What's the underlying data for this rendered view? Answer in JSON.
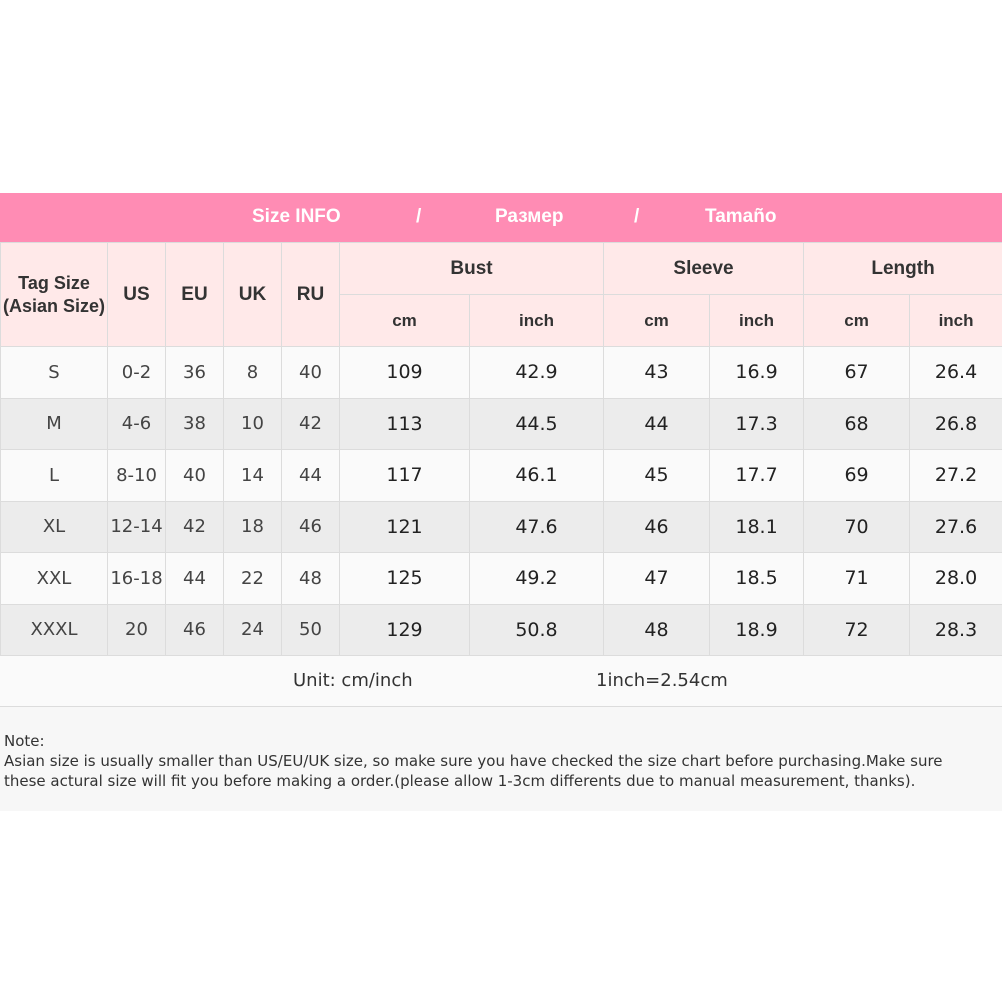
{
  "banner": {
    "title_en": "Size INFO",
    "sep": "/",
    "title_ru": "Размер",
    "title_es": "Tamaño",
    "color": "#ff8cb4"
  },
  "headers": {
    "tag_line1": "Tag Size",
    "tag_line2": "(Asian Size)",
    "us": "US",
    "eu": "EU",
    "uk": "UK",
    "ru": "RU",
    "bust": "Bust",
    "sleeve": "Sleeve",
    "length": "Length",
    "cm": "cm",
    "inch": "inch"
  },
  "rows": [
    [
      "S",
      "0-2",
      "36",
      "8",
      "40",
      "109",
      "42.9",
      "43",
      "16.9",
      "67",
      "26.4"
    ],
    [
      "M",
      "4-6",
      "38",
      "10",
      "42",
      "113",
      "44.5",
      "44",
      "17.3",
      "68",
      "26.8"
    ],
    [
      "L",
      "8-10",
      "40",
      "14",
      "44",
      "117",
      "46.1",
      "45",
      "17.7",
      "69",
      "27.2"
    ],
    [
      "XL",
      "12-14",
      "42",
      "18",
      "46",
      "121",
      "47.6",
      "46",
      "18.1",
      "70",
      "27.6"
    ],
    [
      "XXL",
      "16-18",
      "44",
      "22",
      "48",
      "125",
      "49.2",
      "47",
      "18.5",
      "71",
      "28.0"
    ],
    [
      "XXXL",
      "20",
      "46",
      "24",
      "50",
      "129",
      "50.8",
      "48",
      "18.9",
      "72",
      "28.3"
    ]
  ],
  "unit": {
    "label": "Unit: cm/inch",
    "conversion": "1inch=2.54cm"
  },
  "note": {
    "title": "Note:",
    "line1": "Asian size is usually smaller than US/EU/UK size, so make sure you have checked the size chart before purchasing.Make sure",
    "line2": "these actural size will fit you before making a order.(please allow 1-3cm differents due to manual measurement, thanks)."
  }
}
